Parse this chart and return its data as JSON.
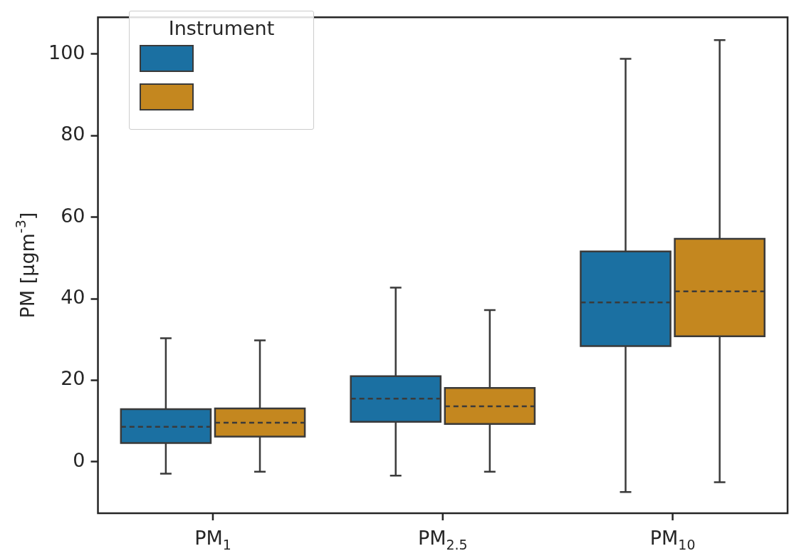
{
  "chart_data": {
    "type": "box",
    "ylabel": "PM [µgm$^{-3}$]",
    "legend_title": "Instrument",
    "grid": false,
    "categories": [
      "PM$_{1}$",
      "PM$_{2.5}$",
      "PM$_{10}$"
    ],
    "ylim": [
      -12.6,
      109
    ],
    "yticks": [
      0,
      20,
      40,
      60,
      80,
      100
    ],
    "series": [
      {
        "color": "#1b70a2",
        "boxes": [
          {
            "low": -2.9,
            "q1": 4.6,
            "median": 8.6,
            "q3": 12.9,
            "high": 30.3
          },
          {
            "low": -3.4,
            "q1": 9.8,
            "median": 15.5,
            "q3": 21.0,
            "high": 42.7
          },
          {
            "low": -7.4,
            "q1": 28.4,
            "median": 39.1,
            "q3": 51.6,
            "high": 98.8
          }
        ]
      },
      {
        "color": "#c4871f",
        "boxes": [
          {
            "low": -2.4,
            "q1": 6.2,
            "median": 9.6,
            "q3": 13.1,
            "high": 29.8
          },
          {
            "low": -2.4,
            "q1": 9.3,
            "median": 13.6,
            "q3": 18.1,
            "high": 37.2
          },
          {
            "low": -5.0,
            "q1": 30.8,
            "median": 41.8,
            "q3": 54.7,
            "high": 103.4
          }
        ]
      }
    ]
  }
}
